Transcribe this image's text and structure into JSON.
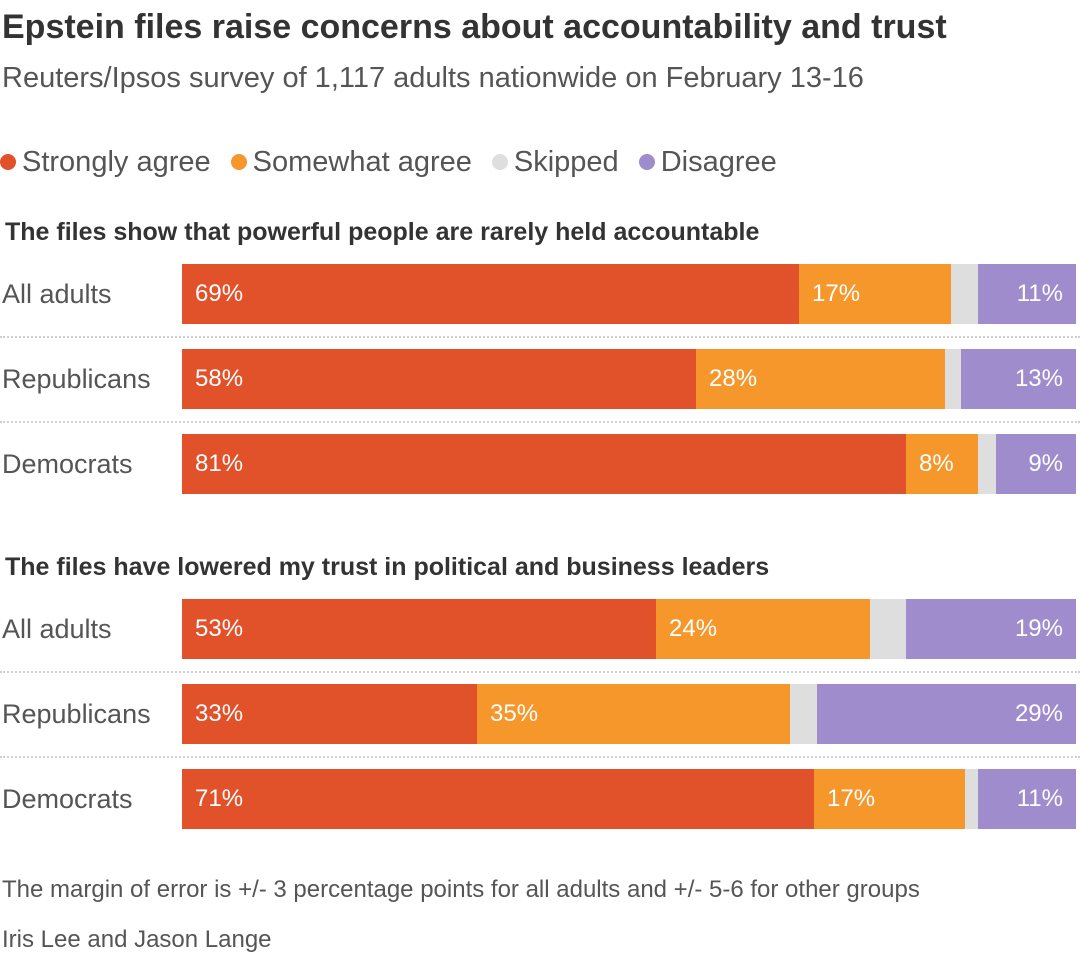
{
  "chart_data": {
    "type": "bar",
    "orientation": "horizontal",
    "stacked": true,
    "title": "Epstein files raise concerns about accountability and trust",
    "subtitle": "Reuters/Ipsos survey of 1,117 adults nationwide on February 13-16",
    "legend": [
      {
        "name": "Strongly agree",
        "color": "#e2522a"
      },
      {
        "name": "Somewhat agree",
        "color": "#f5972a"
      },
      {
        "name": "Skipped",
        "color": "#dedede"
      },
      {
        "name": "Disagree",
        "color": "#9e8ccd"
      }
    ],
    "legend_position": "top-left",
    "xlim": [
      0,
      100
    ],
    "panels": [
      {
        "title": "The files show that powerful people are rarely held accountable",
        "categories": [
          "All adults",
          "Republicans",
          "Democrats"
        ],
        "series": [
          {
            "name": "Strongly agree",
            "values": [
              69,
              58,
              81
            ],
            "labels": [
              "69%",
              "58%",
              "81%"
            ]
          },
          {
            "name": "Somewhat agree",
            "values": [
              17,
              28,
              8
            ],
            "labels": [
              "17%",
              "28%",
              "8%"
            ]
          },
          {
            "name": "Skipped",
            "values": [
              3,
              1.8,
              2
            ],
            "labels": [
              "",
              "",
              ""
            ]
          },
          {
            "name": "Disagree",
            "values": [
              11,
              13,
              9
            ],
            "labels": [
              "11%",
              "13%",
              "9%"
            ]
          }
        ]
      },
      {
        "title": "The files have lowered my trust in political and business leaders",
        "categories": [
          "All adults",
          "Republicans",
          "Democrats"
        ],
        "series": [
          {
            "name": "Strongly agree",
            "values": [
              53,
              33,
              71
            ],
            "labels": [
              "53%",
              "33%",
              "71%"
            ]
          },
          {
            "name": "Somewhat agree",
            "values": [
              24,
              35,
              17
            ],
            "labels": [
              "24%",
              "35%",
              "17%"
            ]
          },
          {
            "name": "Skipped",
            "values": [
              4,
              3,
              1.5
            ],
            "labels": [
              "",
              "",
              ""
            ]
          },
          {
            "name": "Disagree",
            "values": [
              19,
              29,
              11
            ],
            "labels": [
              "19%",
              "29%",
              "11%"
            ]
          }
        ]
      }
    ],
    "note": "The margin of error is +/- 3 percentage points for all adults and +/- 5-6 for other groups",
    "credit": "Iris Lee and Jason Lange"
  }
}
